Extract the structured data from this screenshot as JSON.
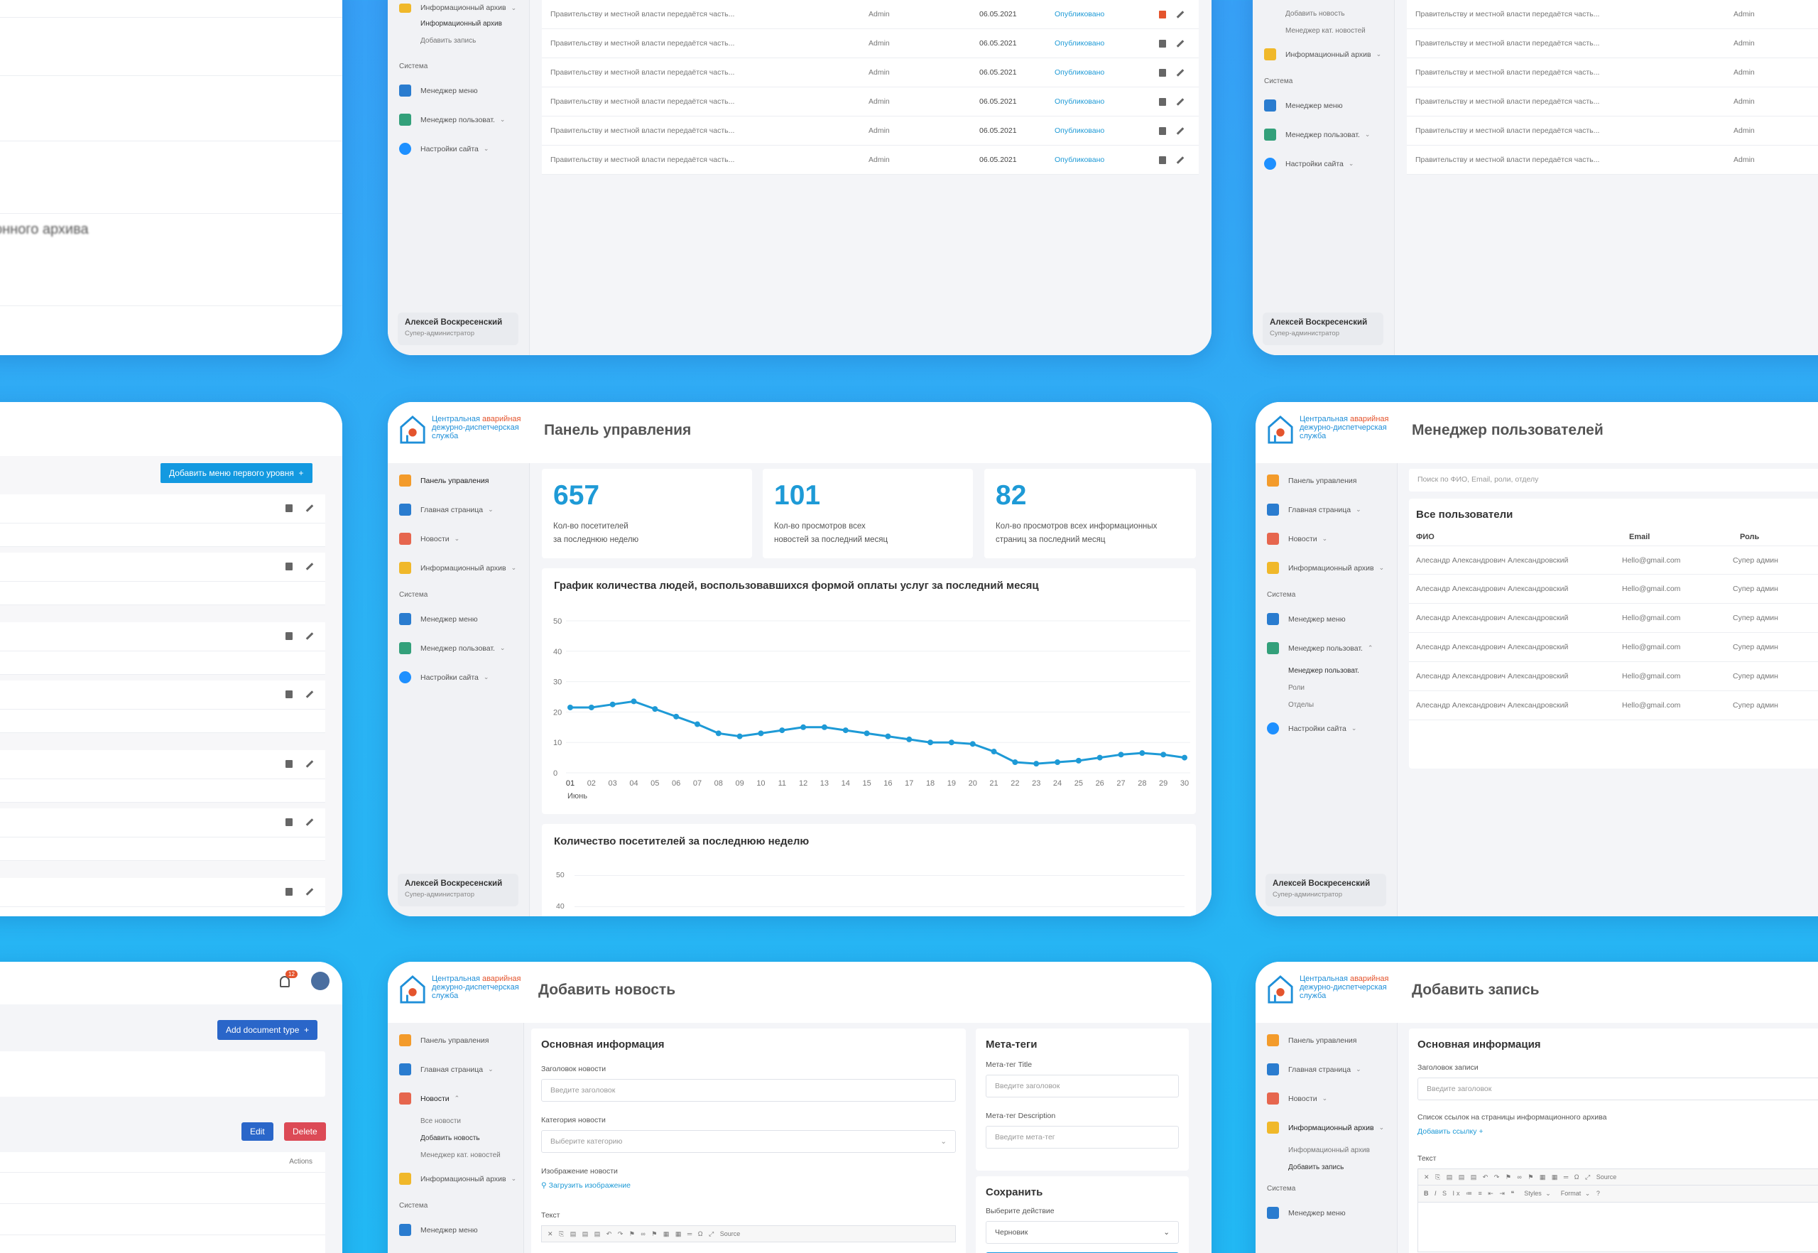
{
  "logo": {
    "line1a": "Центральная ",
    "line1b": "аварийная",
    "line2": "дежурно-диспетчерская",
    "line3": "служба"
  },
  "user": {
    "name": "Алексей Воскресенский",
    "role": "Супер-администратор"
  },
  "nav": {
    "dashboard": "Панель управления",
    "home": "Главная страница",
    "news": "Новости",
    "archive": "Информационный архив",
    "system": "Система",
    "menu_manager": "Менеджер меню",
    "user_manager": "Менеджер пользоват.",
    "site_settings": "Настройки сайта",
    "archive_sub": [
      "Информационный архив",
      "Добавить запись"
    ],
    "news_sub": [
      "Все новости",
      "Добавить новость",
      "Менеджер кат. новостей"
    ],
    "users_sub": [
      "Менеджер пользоват.",
      "Роли",
      "Отделы"
    ],
    "tr_sub": [
      "Добавить новость",
      "Менеджер кат. новостей"
    ]
  },
  "records": {
    "rows": [
      {
        "title": "Правительству и местной власти передаётся часть...",
        "author": "Admin",
        "date": "06.05.2021",
        "status": "Опубликовано"
      },
      {
        "title": "Правительству и местной власти передаётся часть...",
        "author": "Admin",
        "date": "06.05.2021",
        "status": "Опубликовано"
      },
      {
        "title": "Правительству и местной власти передаётся часть...",
        "author": "Admin",
        "date": "06.05.2021",
        "status": "Опубликовано"
      },
      {
        "title": "Правительству и местной власти передаётся часть...",
        "author": "Admin",
        "date": "06.05.2021",
        "status": "Опубликовано"
      },
      {
        "title": "Правительству и местной власти передаётся часть...",
        "author": "Admin",
        "date": "06.05.2021",
        "status": "Опубликовано"
      },
      {
        "title": "Правительству и местной власти передаётся часть...",
        "author": "Admin",
        "date": "06.05.2021",
        "status": "Опубликовано"
      }
    ]
  },
  "left_top": {
    "blur_text": "онного архива"
  },
  "dashboard": {
    "title": "Панель управления",
    "stats": [
      {
        "value": "657",
        "label1": "Кол-во посетителей",
        "label2": "за последнюю неделю"
      },
      {
        "value": "101",
        "label1": "Кол-во просмотров всех",
        "label2": "новостей за последний месяц"
      },
      {
        "value": "82",
        "label1": "Кол-во просмотров всех информационных",
        "label2": "страниц за последний месяц"
      }
    ],
    "chart2_title": "Количество посетителей за последнюю неделю",
    "chart2_ticks": [
      "50",
      "40"
    ]
  },
  "chart_data": {
    "type": "line",
    "title": "График количества людей, воспользовавшихся формой оплаты услуг за последний месяц",
    "x": [
      "01",
      "02",
      "03",
      "04",
      "05",
      "06",
      "07",
      "08",
      "09",
      "10",
      "11",
      "12",
      "13",
      "14",
      "15",
      "16",
      "17",
      "18",
      "19",
      "20",
      "21",
      "22",
      "23",
      "24",
      "25",
      "26",
      "27",
      "28",
      "29",
      "30"
    ],
    "xlabel": "Июнь",
    "values": [
      21.5,
      21.5,
      22.5,
      23.5,
      21,
      18.5,
      16,
      13,
      12,
      13,
      14,
      15,
      15,
      14,
      13,
      12,
      11,
      10,
      10,
      9.5,
      7,
      3.5,
      3,
      3.5,
      4,
      5,
      6,
      6.5,
      6,
      5
    ],
    "yticks": [
      "50",
      "40",
      "30",
      "20",
      "10",
      "0"
    ],
    "ylim": [
      0,
      50
    ],
    "color": "#1e9ad6",
    "grid": true
  },
  "users": {
    "title": "Менеджер пользователей",
    "search_placeholder": "Поиск по ФИО, Email, роли, отделу",
    "section": "Все пользователи",
    "columns": [
      "ФИО",
      "Email",
      "Роль"
    ],
    "rows": [
      {
        "name": "Алесандр Александрович Александровский",
        "email": "Hello@gmail.com",
        "role": "Супер админ"
      },
      {
        "name": "Алесандр Александрович Александровский",
        "email": "Hello@gmail.com",
        "role": "Супер админ"
      },
      {
        "name": "Алесандр Александрович Александровский",
        "email": "Hello@gmail.com",
        "role": "Супер админ"
      },
      {
        "name": "Алесандр Александрович Александровский",
        "email": "Hello@gmail.com",
        "role": "Супер админ"
      },
      {
        "name": "Алесандр Александрович Александровский",
        "email": "Hello@gmail.com",
        "role": "Супер админ"
      },
      {
        "name": "Алесандр Александрович Александровский",
        "email": "Hello@gmail.com",
        "role": "Супер админ"
      }
    ]
  },
  "menu_mgr": {
    "add_button": "Добавить меню первого уровня"
  },
  "doc_types": {
    "badge": "12",
    "add_button": "Add document type",
    "edit": "Edit",
    "delete": "Delete",
    "actions": "Actions"
  },
  "add_news": {
    "title": "Добавить новость",
    "section": "Основная информация",
    "title_label": "Заголовок новости",
    "title_placeholder": "Введите заголовок",
    "category_label": "Категория новости",
    "category_placeholder": "Выберите категорию",
    "image_label": "Изображение новости",
    "upload": "Загрузить изображение",
    "text_label": "Текст",
    "toolbar_source": "Source",
    "meta_title": "Мета-теги",
    "meta_t_label": "Мета-тег Title",
    "meta_t_placeholder": "Введите заголовок",
    "meta_d_label": "Мета-тег Description",
    "meta_d_placeholder": "Введите мета-тег",
    "save_title": "Сохранить",
    "action_label": "Выберите действие",
    "action_value": "Черновик"
  },
  "add_record": {
    "title": "Добавить запись",
    "section": "Основная информация",
    "title_label": "Заголовок записи",
    "title_placeholder": "Введите заголовок",
    "links_label": "Список ссылок на страницы информационного архива",
    "add_link": "Добавить ссылку +",
    "text_label": "Текст",
    "toolbar_source": "Source",
    "styles": "Styles",
    "format": "Format"
  }
}
